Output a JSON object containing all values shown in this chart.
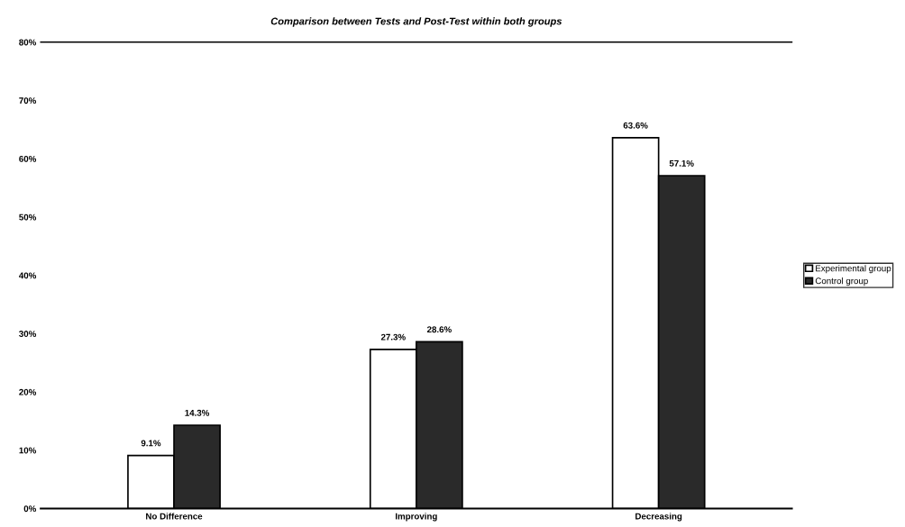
{
  "chart_data": {
    "type": "bar",
    "title": "Comparison between Tests and Post-Test within both groups",
    "categories": [
      "No Difference",
      "Improving",
      "Decreasing"
    ],
    "series": [
      {
        "name": "Experimental group",
        "color": "#ffffff",
        "values": [
          9.1,
          27.3,
          63.6
        ],
        "value_labels": [
          "9.1%",
          "27.3%",
          "63.6%"
        ]
      },
      {
        "name": "Control group",
        "color": "#2a2a2a",
        "values": [
          14.3,
          28.6,
          57.1
        ],
        "value_labels": [
          "14.3%",
          "28.6%",
          "57.1%"
        ]
      }
    ],
    "ylim": [
      0,
      80
    ],
    "yticks": [
      {
        "value": 0,
        "label": "0%"
      },
      {
        "value": 10,
        "label": "10%"
      },
      {
        "value": 20,
        "label": "20%"
      },
      {
        "value": 30,
        "label": "30%"
      },
      {
        "value": 40,
        "label": "40%"
      },
      {
        "value": 50,
        "label": "50%"
      },
      {
        "value": 60,
        "label": "60%"
      },
      {
        "value": 70,
        "label": "70%"
      },
      {
        "value": 80,
        "label": "80%"
      }
    ],
    "legend": "right",
    "grid": false
  }
}
